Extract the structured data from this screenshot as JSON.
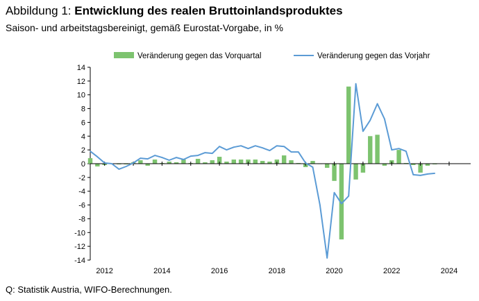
{
  "header": {
    "title_prefix": "Abbildung 1: ",
    "title_main": "Entwicklung des realen Bruttoinlandsproduktes",
    "subtitle": "Saison- und arbeitstagsbereinigt, gemäß Eurostat-Vorgabe, in %"
  },
  "footer": {
    "source": "Q: Statistik Austria, WIFO-Berechnungen."
  },
  "chart_data": {
    "type": "bar",
    "title": "Entwicklung des realen Bruttoinlandsproduktes",
    "xlabel": "",
    "ylabel": "",
    "ylim": [
      -14,
      14
    ],
    "yticks": [
      14,
      12,
      10,
      8,
      6,
      4,
      2,
      0,
      -2,
      -4,
      -6,
      -8,
      -10,
      -12,
      -14
    ],
    "xlim": [
      2011.5,
      2024.75
    ],
    "xticks": [
      "2012",
      "2014",
      "2016",
      "2018",
      "2020",
      "2022",
      "2024"
    ],
    "legend": {
      "placement": "top",
      "entries": [
        "Veränderung gegen das Vorquartal",
        "Veränderung gegen das Vorjahr"
      ]
    },
    "colors": {
      "bars": "#7dc36f",
      "line": "#5b9bd5",
      "axis": "#000000"
    },
    "series": [
      {
        "name": "Veränderung gegen das Vorquartal",
        "kind": "bar",
        "x": [
          2011.5,
          2011.75,
          2012.0,
          2012.25,
          2012.5,
          2012.75,
          2013.0,
          2013.25,
          2013.5,
          2013.75,
          2014.0,
          2014.25,
          2014.5,
          2014.75,
          2015.0,
          2015.25,
          2015.5,
          2015.75,
          2016.0,
          2016.25,
          2016.5,
          2016.75,
          2017.0,
          2017.25,
          2017.5,
          2017.75,
          2018.0,
          2018.25,
          2018.5,
          2018.75,
          2019.0,
          2019.25,
          2019.5,
          2019.75,
          2020.0,
          2020.25,
          2020.5,
          2020.75,
          2021.0,
          2021.25,
          2021.5,
          2021.75,
          2022.0,
          2022.25,
          2022.5,
          2022.75,
          2023.0,
          2023.25,
          2023.5
        ],
        "values": [
          0.8,
          -0.4,
          -0.2,
          0.0,
          -0.1,
          -0.1,
          0.2,
          0.5,
          -0.3,
          0.6,
          0.1,
          0.3,
          0.2,
          0.6,
          0.1,
          0.7,
          0.2,
          0.5,
          1.0,
          0.3,
          0.6,
          0.6,
          0.6,
          0.6,
          0.4,
          0.3,
          0.6,
          1.2,
          0.5,
          0.1,
          -0.5,
          0.4,
          0.0,
          -0.6,
          -2.5,
          -11.0,
          11.2,
          -2.3,
          -1.3,
          4.0,
          4.2,
          -0.3,
          0.5,
          2.0,
          0.1,
          -0.2,
          -1.3,
          -0.3,
          -0.1
        ]
      },
      {
        "name": "Veränderung gegen das Vorjahr",
        "kind": "line",
        "x": [
          2011.5,
          2011.75,
          2012.0,
          2012.25,
          2012.5,
          2012.75,
          2013.0,
          2013.25,
          2013.5,
          2013.75,
          2014.0,
          2014.25,
          2014.5,
          2014.75,
          2015.0,
          2015.25,
          2015.5,
          2015.75,
          2016.0,
          2016.25,
          2016.5,
          2016.75,
          2017.0,
          2017.25,
          2017.5,
          2017.75,
          2018.0,
          2018.25,
          2018.5,
          2018.75,
          2019.0,
          2019.25,
          2019.5,
          2019.75,
          2020.0,
          2020.25,
          2020.5,
          2020.75,
          2021.0,
          2021.25,
          2021.5,
          2021.75,
          2022.0,
          2022.25,
          2022.5,
          2022.75,
          2023.0,
          2023.25,
          2023.5
        ],
        "values": [
          1.8,
          1.0,
          0.1,
          0.0,
          -0.8,
          -0.4,
          0.1,
          0.8,
          0.7,
          1.2,
          0.9,
          0.5,
          0.9,
          0.6,
          1.1,
          1.2,
          1.6,
          1.5,
          2.5,
          2.0,
          2.4,
          2.6,
          2.2,
          2.6,
          2.3,
          1.9,
          2.6,
          2.5,
          1.7,
          1.7,
          0.1,
          -0.5,
          -6.0,
          -13.7,
          -4.2,
          -5.8,
          -4.7,
          11.6,
          4.7,
          6.3,
          8.7,
          6.5,
          2.0,
          2.2,
          1.8,
          -1.6,
          -1.7,
          -1.5,
          -1.4
        ]
      }
    ]
  }
}
